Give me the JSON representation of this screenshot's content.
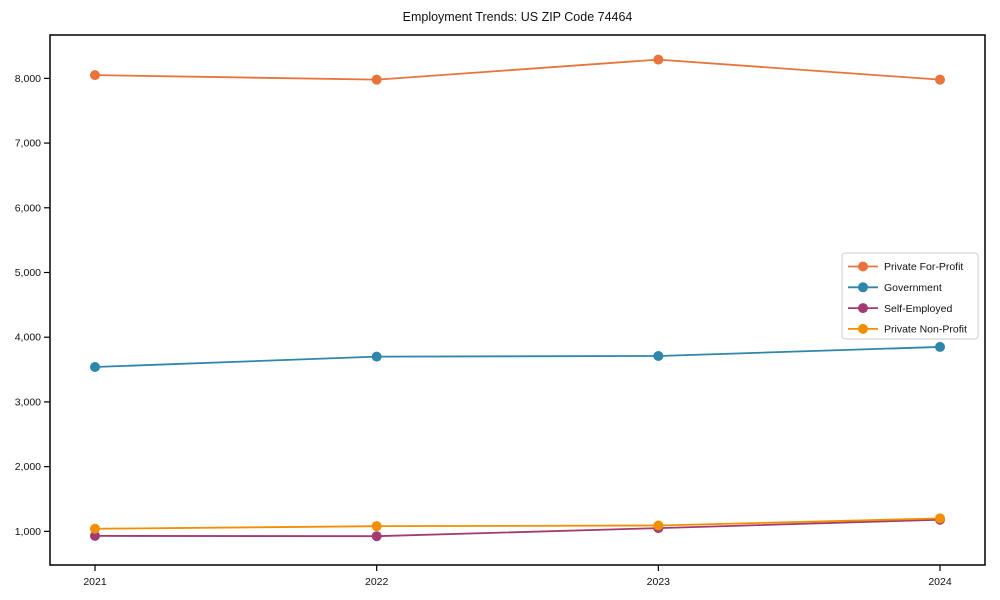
{
  "figure": {
    "background": "#ffffff",
    "text_color": "#111111",
    "axis_color": "#000000",
    "legend_border_color": "#cccccc"
  },
  "chart_data": {
    "type": "line",
    "title": "Employment Trends: US ZIP Code 74464",
    "xlabel": "",
    "ylabel": "",
    "x": [
      "2021",
      "2022",
      "2023",
      "2024"
    ],
    "ylim": [
      480,
      8670
    ],
    "yticks": [
      1000,
      2000,
      3000,
      4000,
      5000,
      6000,
      7000,
      8000
    ],
    "ytick_labels": [
      "1,000",
      "2,000",
      "3,000",
      "4,000",
      "5,000",
      "6,000",
      "7,000",
      "8,000"
    ],
    "grid": false,
    "legend_position": "center right",
    "marker": "circle",
    "series": [
      {
        "name": "Private For-Profit",
        "color": "#E8743B",
        "values": [
          8050,
          7980,
          8290,
          7980
        ]
      },
      {
        "name": "Government",
        "color": "#2E86AB",
        "values": [
          3540,
          3700,
          3710,
          3850
        ]
      },
      {
        "name": "Self-Employed",
        "color": "#A23B72",
        "values": [
          930,
          925,
          1050,
          1180
        ]
      },
      {
        "name": "Private Non-Profit",
        "color": "#F18F01",
        "values": [
          1040,
          1080,
          1090,
          1200
        ]
      }
    ]
  }
}
